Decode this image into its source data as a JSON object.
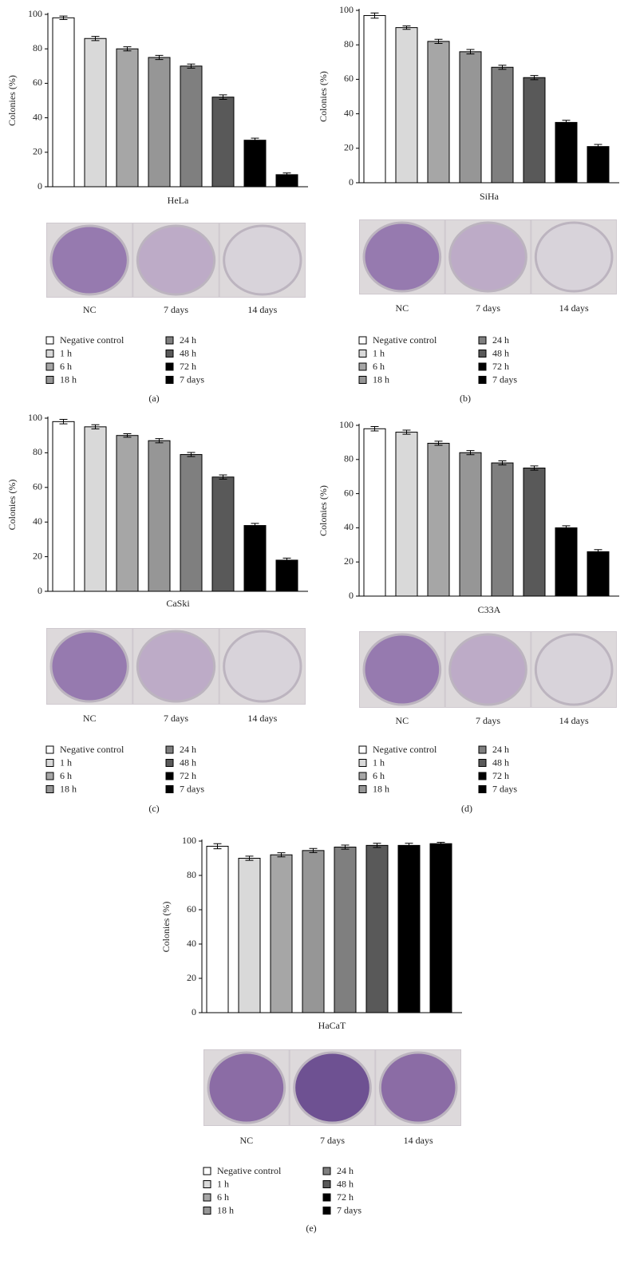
{
  "chart_data": [
    {
      "type": "bar",
      "panel": "(a)",
      "xlabel": "HeLa",
      "ylabel": "Colonies (%)",
      "categories": [
        "Negative control",
        "1 h",
        "6 h",
        "18 h",
        "24 h",
        "48 h",
        "72 h",
        "7 days"
      ],
      "colors": [
        "#ffffff",
        "#d9d9d9",
        "#a6a6a6",
        "#969696",
        "#7f7f7f",
        "#595959",
        "#000000",
        "#000000"
      ],
      "values": [
        98,
        86,
        80,
        75,
        70,
        52,
        27,
        7
      ],
      "errors": [
        1,
        1.2,
        1.2,
        1.2,
        1.2,
        1.3,
        1.2,
        1
      ],
      "ylim": [
        0,
        100
      ],
      "yticks": [
        0,
        20,
        40,
        60,
        80,
        100
      ],
      "image_labels": [
        "NC",
        "7 days",
        "14 days"
      ]
    },
    {
      "type": "bar",
      "panel": "(b)",
      "xlabel": "SiHa",
      "ylabel": "Colonies (%)",
      "categories": [
        "Negative control",
        "1 h",
        "6 h",
        "18 h",
        "24 h",
        "48 h",
        "72 h",
        "7 days"
      ],
      "colors": [
        "#ffffff",
        "#d9d9d9",
        "#a6a6a6",
        "#969696",
        "#7f7f7f",
        "#595959",
        "#000000",
        "#000000"
      ],
      "values": [
        97,
        90,
        82,
        76,
        67,
        61,
        35,
        21
      ],
      "errors": [
        1.5,
        1,
        1.2,
        1.3,
        1.2,
        1.2,
        1.2,
        1.2
      ],
      "ylim": [
        0,
        100
      ],
      "yticks": [
        0,
        20,
        40,
        60,
        80,
        100
      ],
      "image_labels": [
        "NC",
        "7 days",
        "14 days"
      ]
    },
    {
      "type": "bar",
      "panel": "(c)",
      "xlabel": "CaSki",
      "ylabel": "Colonies (%)",
      "categories": [
        "Negative control",
        "1 h",
        "6 h",
        "18 h",
        "24 h",
        "48 h",
        "72 h",
        "7 days"
      ],
      "colors": [
        "#ffffff",
        "#d9d9d9",
        "#a6a6a6",
        "#969696",
        "#7f7f7f",
        "#595959",
        "#000000",
        "#000000"
      ],
      "values": [
        98,
        95,
        90,
        87,
        79,
        66,
        38,
        18
      ],
      "errors": [
        1.3,
        1.2,
        1,
        1.2,
        1.2,
        1.2,
        1.2,
        1.2
      ],
      "ylim": [
        0,
        100
      ],
      "yticks": [
        0,
        20,
        40,
        60,
        80,
        100
      ],
      "image_labels": [
        "NC",
        "7 days",
        "14 days"
      ]
    },
    {
      "type": "bar",
      "panel": "(d)",
      "xlabel": "C33A",
      "ylabel": "Colonies (%)",
      "categories": [
        "Negative control",
        "1 h",
        "6 h",
        "18 h",
        "24 h",
        "48 h",
        "72 h",
        "7 days"
      ],
      "colors": [
        "#ffffff",
        "#d9d9d9",
        "#a6a6a6",
        "#969696",
        "#7f7f7f",
        "#595959",
        "#000000",
        "#000000"
      ],
      "values": [
        98,
        96,
        89.5,
        84,
        78,
        75,
        40,
        26
      ],
      "errors": [
        1.3,
        1.2,
        1.2,
        1.2,
        1.2,
        1.2,
        1.2,
        1.2
      ],
      "ylim": [
        0,
        100
      ],
      "yticks": [
        0,
        20,
        40,
        60,
        80,
        100
      ],
      "image_labels": [
        "NC",
        "7 days",
        "14 days"
      ]
    },
    {
      "type": "bar",
      "panel": "(e)",
      "xlabel": "HaCaT",
      "ylabel": "Colonies (%)",
      "categories": [
        "Negative control",
        "1 h",
        "6 h",
        "18 h",
        "24 h",
        "48 h",
        "72 h",
        "7 days"
      ],
      "colors": [
        "#ffffff",
        "#d9d9d9",
        "#a6a6a6",
        "#969696",
        "#7f7f7f",
        "#595959",
        "#000000",
        "#000000"
      ],
      "values": [
        97,
        90,
        92,
        94.5,
        96.5,
        97.5,
        97.5,
        98.5
      ],
      "errors": [
        1.5,
        1.2,
        1.2,
        1.2,
        1.2,
        1.2,
        1.2,
        0.8
      ],
      "ylim": [
        0,
        100
      ],
      "yticks": [
        0,
        20,
        40,
        60,
        80,
        100
      ],
      "image_labels": [
        "NC",
        "7 days",
        "14 days"
      ]
    }
  ]
}
